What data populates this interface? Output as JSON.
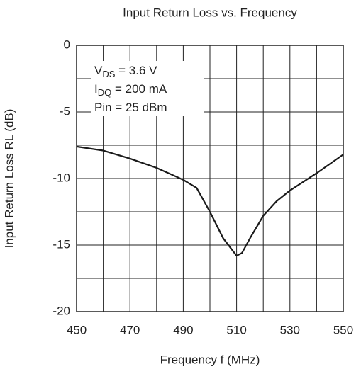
{
  "chart_data": {
    "type": "line",
    "title": "Input Return Loss vs. Frequency",
    "x_label": "Frequency f (MHz)",
    "y_label": "Input Return Loss RL (dB)",
    "annotations": [
      {
        "main": "V",
        "sub": "DS",
        "rest": " = 3.6 V"
      },
      {
        "main": "I",
        "sub": "DQ",
        "rest": " = 200 mA"
      },
      {
        "main": "Pin = 25 dBm"
      }
    ],
    "x": [
      450,
      460,
      470,
      480,
      490,
      495,
      500,
      505,
      510,
      512,
      515,
      520,
      525,
      530,
      540,
      550
    ],
    "series": [
      {
        "name": "RL",
        "color": "#1a1a1a",
        "values": [
          -7.6,
          -7.9,
          -8.5,
          -9.2,
          -10.1,
          -10.7,
          -12.5,
          -14.5,
          -15.8,
          -15.6,
          -14.5,
          -12.8,
          -11.7,
          -10.9,
          -9.6,
          -8.2
        ]
      }
    ],
    "xlim": [
      450,
      550
    ],
    "ylim": [
      -20,
      0
    ],
    "xticks": [
      450,
      470,
      490,
      510,
      530,
      550
    ],
    "yticks": [
      0,
      -5,
      -10,
      -15,
      -20
    ],
    "xminor": [
      460,
      480,
      500,
      520,
      540
    ],
    "yminor": [
      -2.5,
      -7.5,
      -12.5,
      -17.5
    ],
    "grid": true
  }
}
